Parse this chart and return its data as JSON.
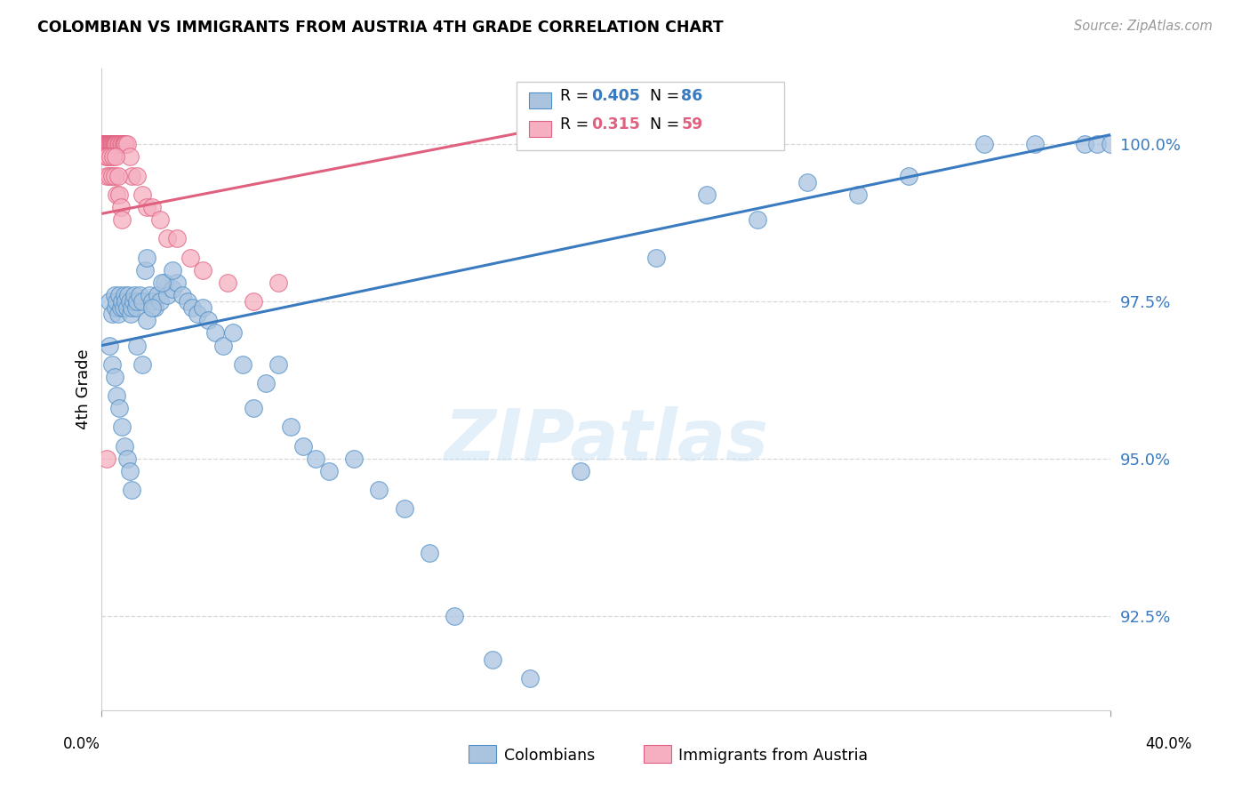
{
  "title": "COLOMBIAN VS IMMIGRANTS FROM AUSTRIA 4TH GRADE CORRELATION CHART",
  "source": "Source: ZipAtlas.com",
  "ylabel": "4th Grade",
  "ylabel_values": [
    92.5,
    95.0,
    97.5,
    100.0
  ],
  "xlim": [
    0.0,
    40.0
  ],
  "ylim": [
    91.0,
    101.2
  ],
  "blue_color": "#aac4e0",
  "blue_edge_color": "#5090c8",
  "pink_color": "#f5afc0",
  "pink_edge_color": "#e06080",
  "blue_line_color": "#3a7abf",
  "pink_line_color": "#e06080",
  "grid_color": "#d8d8d8",
  "background_color": "#ffffff",
  "watermark": "ZIPatlas",
  "blue_trend_x": [
    0.0,
    40.0
  ],
  "blue_trend_y": [
    96.8,
    100.15
  ],
  "pink_trend_x": [
    0.05,
    22.0
  ],
  "pink_trend_y": [
    98.9,
    100.6
  ],
  "blue_scatter_x": [
    0.3,
    0.4,
    0.5,
    0.55,
    0.6,
    0.65,
    0.7,
    0.75,
    0.8,
    0.85,
    0.9,
    0.95,
    1.0,
    1.05,
    1.1,
    1.15,
    1.2,
    1.25,
    1.3,
    1.35,
    1.4,
    1.5,
    1.6,
    1.7,
    1.8,
    1.9,
    2.0,
    2.1,
    2.2,
    2.3,
    2.5,
    2.6,
    2.8,
    3.0,
    3.2,
    3.4,
    3.6,
    3.8,
    4.0,
    4.2,
    4.5,
    4.8,
    5.2,
    5.6,
    6.0,
    6.5,
    7.0,
    7.5,
    8.0,
    8.5,
    9.0,
    10.0,
    11.0,
    12.0,
    13.0,
    14.0,
    15.5,
    17.0,
    19.0,
    22.0,
    24.0,
    26.0,
    28.0,
    30.0,
    32.0,
    35.0,
    37.0,
    39.0,
    39.5,
    40.0,
    0.3,
    0.4,
    0.5,
    0.6,
    0.7,
    0.8,
    0.9,
    1.0,
    1.1,
    1.2,
    1.4,
    1.6,
    1.8,
    2.0,
    2.4,
    2.8
  ],
  "blue_scatter_y": [
    97.5,
    97.3,
    97.6,
    97.4,
    97.5,
    97.3,
    97.6,
    97.4,
    97.5,
    97.4,
    97.6,
    97.5,
    97.4,
    97.6,
    97.5,
    97.3,
    97.4,
    97.5,
    97.6,
    97.4,
    97.5,
    97.6,
    97.5,
    98.0,
    98.2,
    97.6,
    97.5,
    97.4,
    97.6,
    97.5,
    97.8,
    97.6,
    97.7,
    97.8,
    97.6,
    97.5,
    97.4,
    97.3,
    97.4,
    97.2,
    97.0,
    96.8,
    97.0,
    96.5,
    95.8,
    96.2,
    96.5,
    95.5,
    95.2,
    95.0,
    94.8,
    95.0,
    94.5,
    94.2,
    93.5,
    92.5,
    91.8,
    91.5,
    94.8,
    98.2,
    99.2,
    98.8,
    99.4,
    99.2,
    99.5,
    100.0,
    100.0,
    100.0,
    100.0,
    100.0,
    96.8,
    96.5,
    96.3,
    96.0,
    95.8,
    95.5,
    95.2,
    95.0,
    94.8,
    94.5,
    96.8,
    96.5,
    97.2,
    97.4,
    97.8,
    98.0
  ],
  "pink_scatter_x": [
    0.05,
    0.08,
    0.1,
    0.12,
    0.15,
    0.18,
    0.2,
    0.22,
    0.25,
    0.28,
    0.3,
    0.32,
    0.35,
    0.38,
    0.4,
    0.42,
    0.45,
    0.48,
    0.5,
    0.52,
    0.55,
    0.6,
    0.65,
    0.7,
    0.75,
    0.8,
    0.85,
    0.9,
    0.95,
    1.0,
    1.1,
    1.2,
    1.4,
    1.6,
    1.8,
    2.0,
    2.3,
    2.6,
    3.0,
    3.5,
    4.0,
    5.0,
    6.0,
    7.0,
    0.15,
    0.2,
    0.25,
    0.3,
    0.35,
    0.4,
    0.45,
    0.5,
    0.55,
    0.6,
    0.65,
    0.7,
    0.75,
    0.8,
    0.2
  ],
  "pink_scatter_y": [
    100.0,
    100.0,
    100.0,
    100.0,
    100.0,
    100.0,
    100.0,
    100.0,
    100.0,
    100.0,
    100.0,
    100.0,
    100.0,
    100.0,
    100.0,
    100.0,
    100.0,
    100.0,
    100.0,
    100.0,
    100.0,
    100.0,
    100.0,
    100.0,
    100.0,
    100.0,
    100.0,
    100.0,
    100.0,
    100.0,
    99.8,
    99.5,
    99.5,
    99.2,
    99.0,
    99.0,
    98.8,
    98.5,
    98.5,
    98.2,
    98.0,
    97.8,
    97.5,
    97.8,
    99.8,
    99.5,
    99.8,
    99.5,
    99.8,
    99.5,
    99.8,
    99.5,
    99.8,
    99.2,
    99.5,
    99.2,
    99.0,
    98.8,
    95.0
  ]
}
